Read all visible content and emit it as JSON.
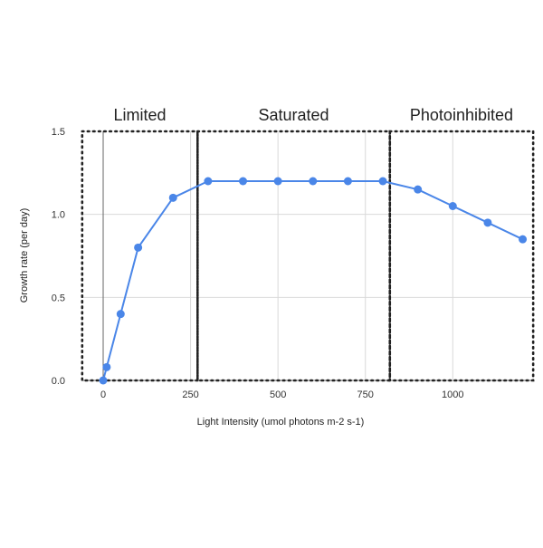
{
  "chart_data": {
    "type": "line",
    "xlabel": "Light Intensity (umol photons m-2 s-1)",
    "ylabel": "Growth rate (per day)",
    "xlim": [
      -60,
      1200
    ],
    "ylim": [
      0,
      1.5
    ],
    "x_ticks": [
      0,
      250,
      500,
      750,
      1000
    ],
    "x_tick_labels": [
      "0",
      "250",
      "500",
      "750",
      "1000"
    ],
    "y_ticks": [
      0,
      0.5,
      1.0,
      1.5
    ],
    "y_tick_labels": [
      "0.0",
      "0.5",
      "1.0",
      "1.5"
    ],
    "grid": true,
    "series": [
      {
        "color": "#4a86e8",
        "x": [
          0,
          10,
          50,
          100,
          200,
          300,
          400,
          500,
          600,
          700,
          800,
          900,
          1000,
          1100,
          1200
        ],
        "y": [
          0,
          0.08,
          0.4,
          0.8,
          1.1,
          1.2,
          1.2,
          1.2,
          1.2,
          1.2,
          1.2,
          1.15,
          1.05,
          0.95,
          0.85
        ]
      }
    ],
    "regions": [
      {
        "label": "Limited",
        "x_start": -60,
        "x_end": 270
      },
      {
        "label": "Saturated",
        "x_start": 270,
        "x_end": 820
      },
      {
        "label": "Photoinhibited",
        "x_start": 820,
        "x_end": 1230
      }
    ]
  }
}
